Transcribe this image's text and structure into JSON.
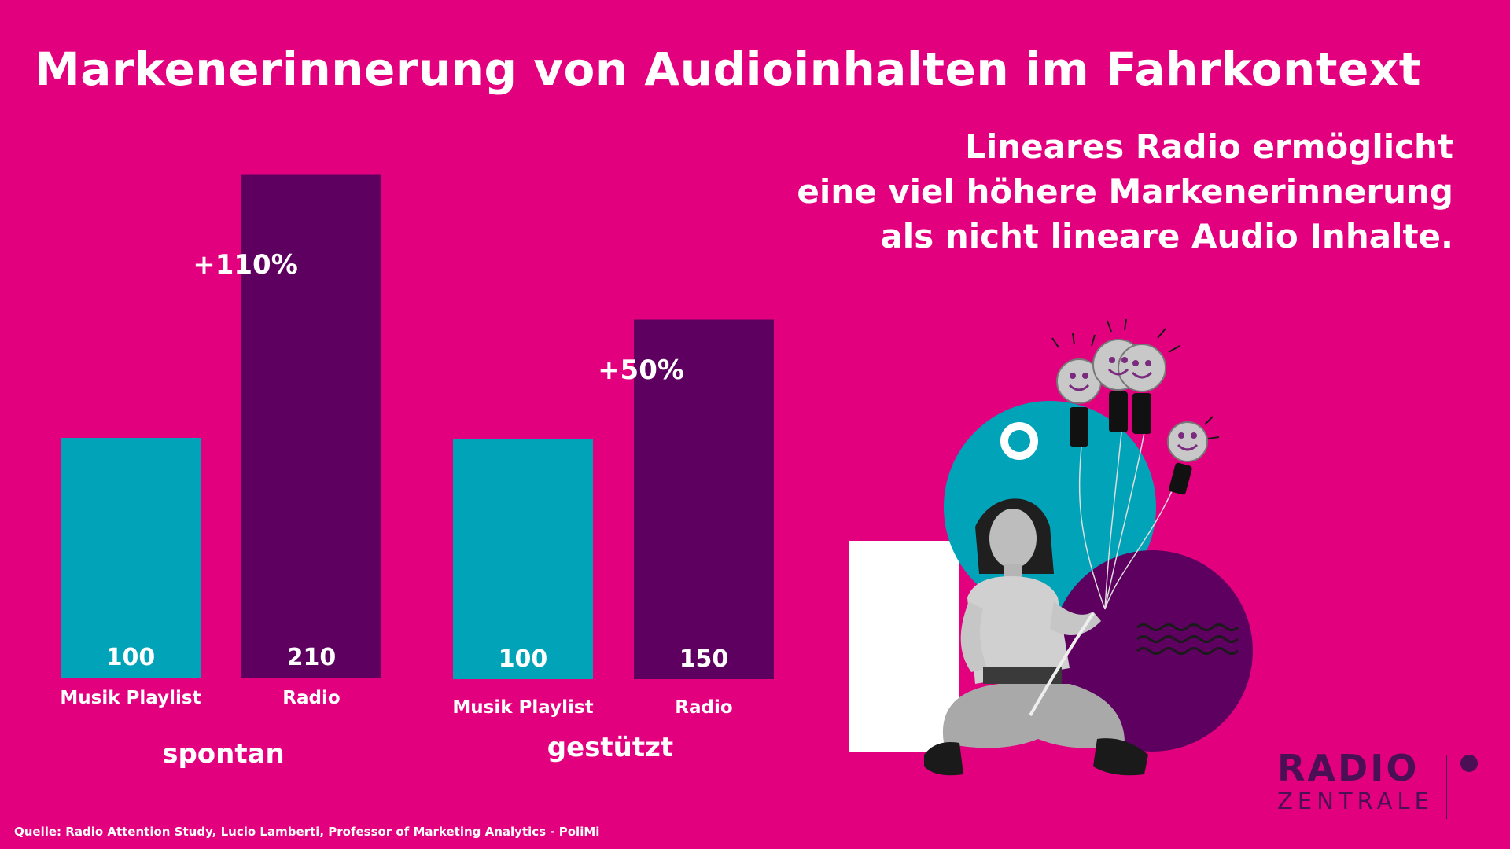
{
  "title": "Markenerinnerung von Audioinhalten im Fahrkontext",
  "subtitle_lines": [
    "Lineares Radio ermöglicht",
    "eine viel höhere Markenerinnerung",
    "als nicht lineare Audio Inhalte."
  ],
  "source": "Quelle: Radio Attention Study, Lucio Lamberti, Professor of Marketing Analytics - PoliMi",
  "logo": {
    "top": "RADIO",
    "bottom": "ZENTRALE"
  },
  "colors": {
    "background": "#E3007F",
    "playlist": "#00A3B8",
    "radio": "#5E0060",
    "text": "#FFFFFF",
    "logo": "#4B0F55"
  },
  "illustration_icons": [
    "teal-circle-icon",
    "purple-circle-icon",
    "white-rectangle-icon",
    "white-ring-icon",
    "wave-lines-icon",
    "smiling-lightbulb-balloon-icon",
    "woman-sitting-photo-icon"
  ],
  "chart_data": {
    "type": "bar",
    "groups": [
      {
        "name": "spontan",
        "categories": [
          "Musik Playlist",
          "Radio"
        ],
        "values": [
          100,
          210
        ],
        "annotation": "+110%"
      },
      {
        "name": "gestützt",
        "categories": [
          "Musik Playlist",
          "Radio"
        ],
        "values": [
          100,
          150
        ],
        "annotation": "+50%"
      }
    ],
    "series_colors": [
      "#00A3B8",
      "#5E0060"
    ],
    "ylim": [
      0,
      210
    ],
    "grid": false,
    "legend": "none"
  }
}
